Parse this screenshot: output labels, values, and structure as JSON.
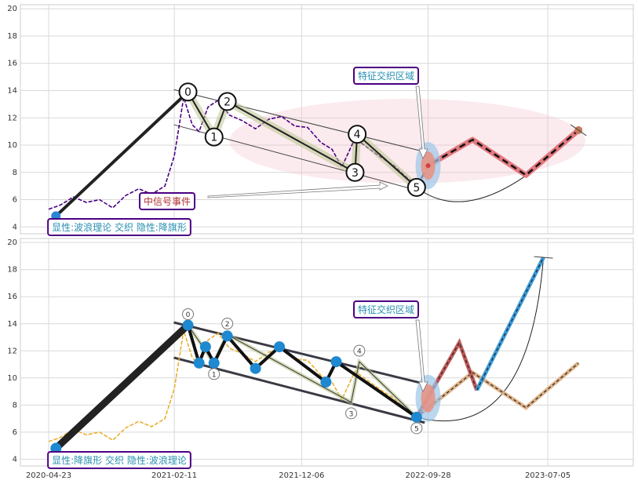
{
  "chart_data": [
    {
      "type": "line",
      "panel": "top",
      "ylim": [
        3.5,
        20.3
      ],
      "yticks": [
        4,
        6,
        8,
        10,
        12,
        14,
        16,
        18,
        20
      ],
      "grid": true,
      "price_series": {
        "color": "#4b0082",
        "x": [
          "2020-04-23",
          "2020-05-20",
          "2020-06-20",
          "2020-07-20",
          "2020-08-20",
          "2020-09-20",
          "2020-10-20",
          "2020-11-20",
          "2020-12-20",
          "2021-01-20",
          "2021-02-11",
          "2021-03-05",
          "2021-03-25",
          "2021-04-10",
          "2021-05-01",
          "2021-05-25",
          "2021-06-20",
          "2021-07-20",
          "2021-08-20",
          "2021-09-20",
          "2021-10-20",
          "2021-11-20",
          "2021-12-20",
          "2022-01-20",
          "2022-02-15",
          "2022-03-10",
          "2022-04-10",
          "2022-05-10",
          "2022-06-10",
          "2022-07-10",
          "2022-08-10",
          "2022-09-01"
        ],
        "y": [
          5.3,
          5.6,
          6.2,
          5.8,
          6.0,
          5.4,
          6.3,
          6.8,
          6.4,
          7.0,
          9.2,
          13.5,
          11.5,
          11.0,
          12.8,
          13.3,
          12.2,
          11.8,
          11.2,
          11.9,
          12.1,
          11.4,
          11.3,
          10.2,
          9.7,
          8.4,
          10.5,
          9.8,
          9.1,
          8.5,
          7.6,
          7.1
        ]
      },
      "wave_points": [
        {
          "label": "0",
          "x": "2021-03-15",
          "y": 13.9
        },
        {
          "label": "1",
          "x": "2021-05-15",
          "y": 10.6
        },
        {
          "label": "2",
          "x": "2021-06-15",
          "y": 13.2
        },
        {
          "label": "3",
          "x": "2022-04-10",
          "y": 8.0
        },
        {
          "label": "4",
          "x": "2022-04-15",
          "y": 10.8
        },
        {
          "label": "5",
          "x": "2022-09-01",
          "y": 6.9
        }
      ],
      "start_point": {
        "x": "2020-05-10",
        "y": 4.8
      },
      "projection": {
        "x": [
          "2022-09-01",
          "2022-09-28",
          "2023-01-10",
          "2023-05-15",
          "2023-09-15"
        ],
        "y": [
          6.9,
          8.5,
          10.4,
          7.8,
          11.1
        ]
      },
      "annotations": {
        "zone_label": "特征交织区域",
        "event_label": "中信号事件",
        "pattern_label": "显性:波浪理论 交织 隐性:降旗形"
      }
    },
    {
      "type": "line",
      "panel": "bottom",
      "ylim": [
        3.5,
        20.3
      ],
      "yticks": [
        4,
        6,
        8,
        10,
        12,
        14,
        16,
        18,
        20
      ],
      "grid": true,
      "price_series": {
        "color": "#e8b030",
        "x": [
          "2020-04-23",
          "2020-05-20",
          "2020-06-20",
          "2020-07-20",
          "2020-08-20",
          "2020-09-20",
          "2020-10-20",
          "2020-11-20",
          "2020-12-20",
          "2021-01-20",
          "2021-02-11",
          "2021-03-05",
          "2021-03-25",
          "2021-04-10",
          "2021-05-01",
          "2021-05-25",
          "2021-06-20",
          "2021-07-20",
          "2021-08-20",
          "2021-09-20",
          "2021-10-20",
          "2021-11-20",
          "2021-12-20",
          "2022-01-20",
          "2022-02-15",
          "2022-03-10",
          "2022-04-10",
          "2022-05-10",
          "2022-06-10",
          "2022-07-10",
          "2022-08-10",
          "2022-09-01"
        ],
        "y": [
          5.3,
          5.6,
          6.2,
          5.8,
          6.0,
          5.4,
          6.3,
          6.8,
          6.4,
          7.0,
          9.2,
          13.5,
          11.5,
          11.0,
          12.8,
          13.3,
          12.2,
          11.8,
          11.2,
          11.9,
          12.1,
          11.4,
          11.3,
          10.2,
          9.7,
          8.4,
          10.5,
          9.8,
          9.1,
          8.5,
          7.6,
          7.1
        ]
      },
      "wave_points": [
        {
          "label": "0",
          "x": "2021-03-15",
          "y": 13.9
        },
        {
          "label": "1",
          "x": "2021-05-15",
          "y": 11.1
        },
        {
          "label": "2",
          "x": "2021-06-15",
          "y": 13.2
        },
        {
          "label": "3",
          "x": "2022-04-01",
          "y": 8.2
        },
        {
          "label": "4",
          "x": "2022-04-20",
          "y": 11.2
        },
        {
          "label": "5",
          "x": "2022-09-01",
          "y": 7.1
        }
      ],
      "flag_points": {
        "x": [
          "2021-03-15",
          "2021-04-10",
          "2021-04-25",
          "2021-05-15",
          "2021-06-15",
          "2021-08-20",
          "2021-10-15",
          "2022-02-01",
          "2022-02-25",
          "2022-09-01"
        ],
        "y": [
          13.9,
          11.1,
          12.3,
          11.1,
          13.1,
          10.7,
          12.3,
          9.7,
          11.2,
          7.1
        ]
      },
      "start_point": {
        "x": "2020-05-10",
        "y": 4.8
      },
      "projection_red": {
        "x": [
          "2022-09-01",
          "2022-12-10",
          "2023-01-20"
        ],
        "y": [
          7.1,
          12.6,
          9.1
        ]
      },
      "projection_blue": {
        "x": [
          "2023-01-20",
          "2023-06-25"
        ],
        "y": [
          9.1,
          18.9
        ]
      },
      "projection_tan": {
        "x": [
          "2022-09-01",
          "2023-01-10",
          "2023-05-15",
          "2023-09-15"
        ],
        "y": [
          7.1,
          10.4,
          7.8,
          11.1
        ]
      },
      "annotations": {
        "zone_label": "特征交织区域",
        "pattern_label": "显性:降旗形 交织 隐性:波浪理论"
      }
    }
  ],
  "x_axis": {
    "tick_labels": [
      "2020-04-23",
      "2021-02-11",
      "2021-12-06",
      "2022-09-28",
      "2023-07-05"
    ]
  }
}
